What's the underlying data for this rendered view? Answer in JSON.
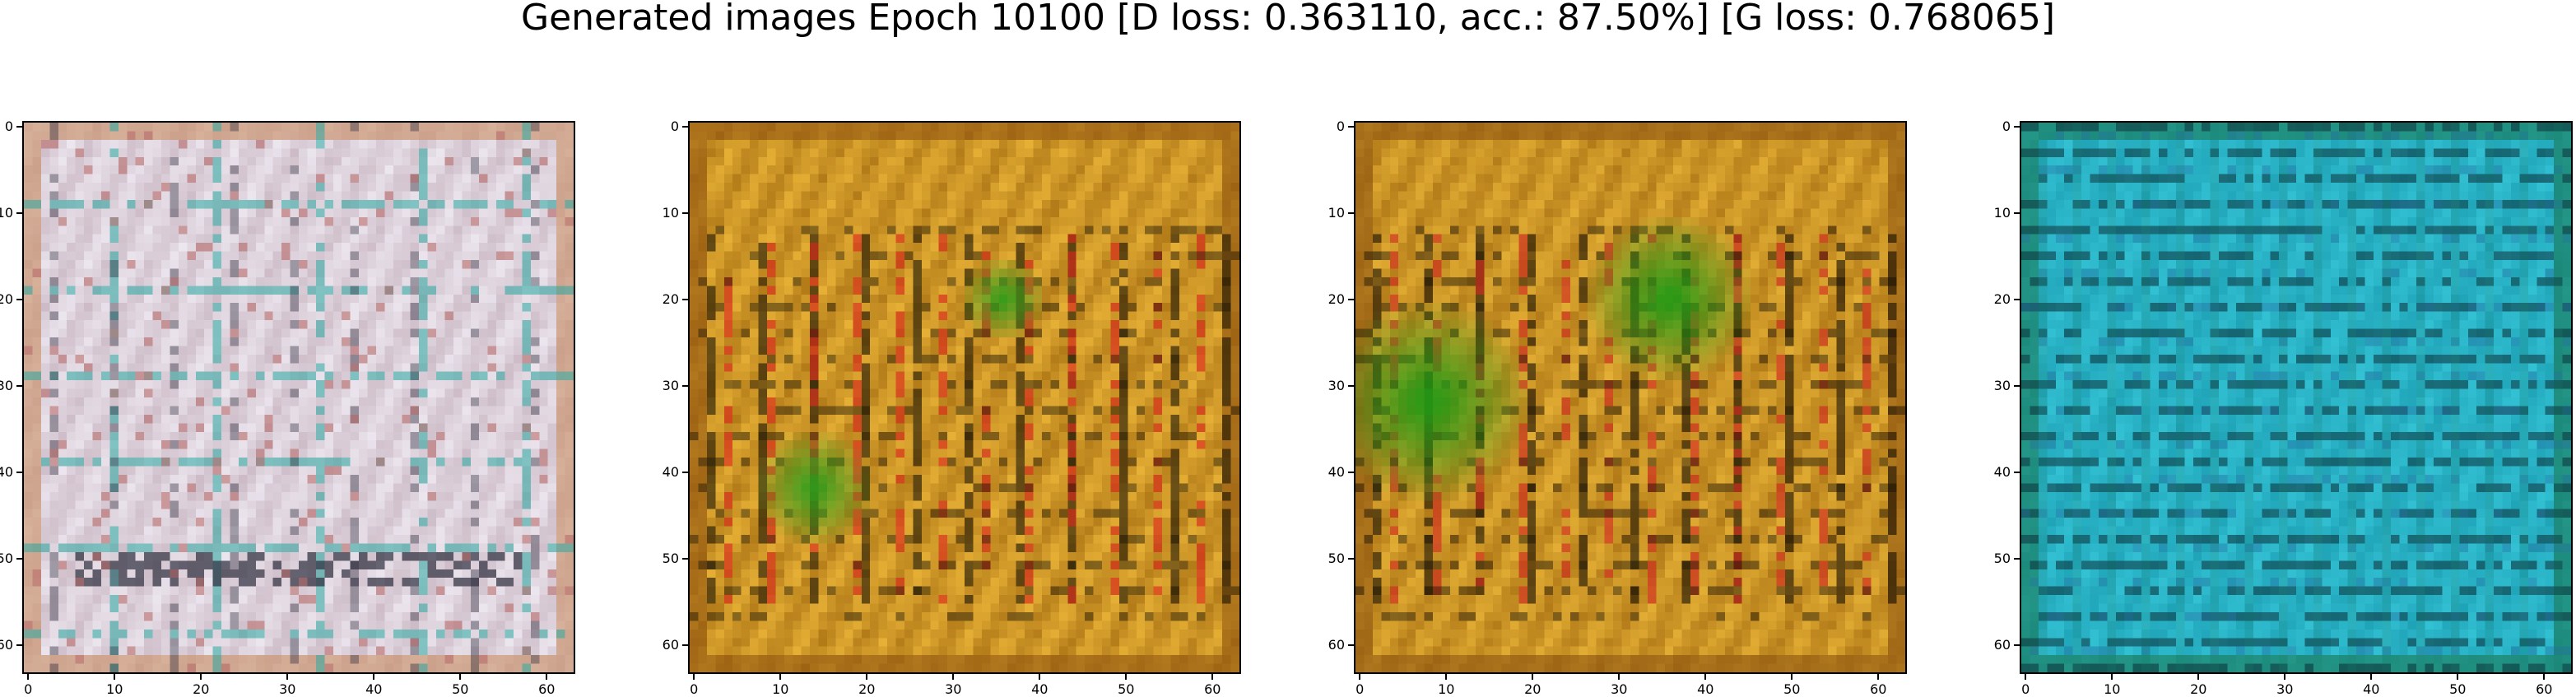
{
  "figure": {
    "title": "Generated images Epoch 10100 [D loss: 0.363110, acc.: 87.50%] [G loss: 0.768065]"
  },
  "axes": {
    "ticks": [
      "0",
      "10",
      "20",
      "30",
      "40",
      "50",
      "60"
    ]
  },
  "panels": [
    {
      "palette": {
        "base": "#cdbcc7",
        "light": "#ece6ef",
        "dark": "#2c2c3c",
        "accent1": "#2aa8a0",
        "accent2": "#b86c6a",
        "edge": "#c98d62"
      }
    },
    {
      "palette": {
        "base": "#b27a18",
        "light": "#e7b136",
        "dark": "#1a1304",
        "accent1": "#2f9e1c",
        "accent2": "#d8281c",
        "edge": "#915510"
      }
    },
    {
      "palette": {
        "base": "#b27a18",
        "light": "#e3ae34",
        "dark": "#140d03",
        "accent1": "#1f9a15",
        "accent2": "#d02a20",
        "edge": "#8d5410"
      }
    },
    {
      "palette": {
        "base": "#1fa3b7",
        "light": "#33c1d4",
        "dark": "#0b3038",
        "accent1": "#167d6e",
        "accent2": "#256ea0",
        "edge": "#1a7a55"
      }
    }
  ]
}
